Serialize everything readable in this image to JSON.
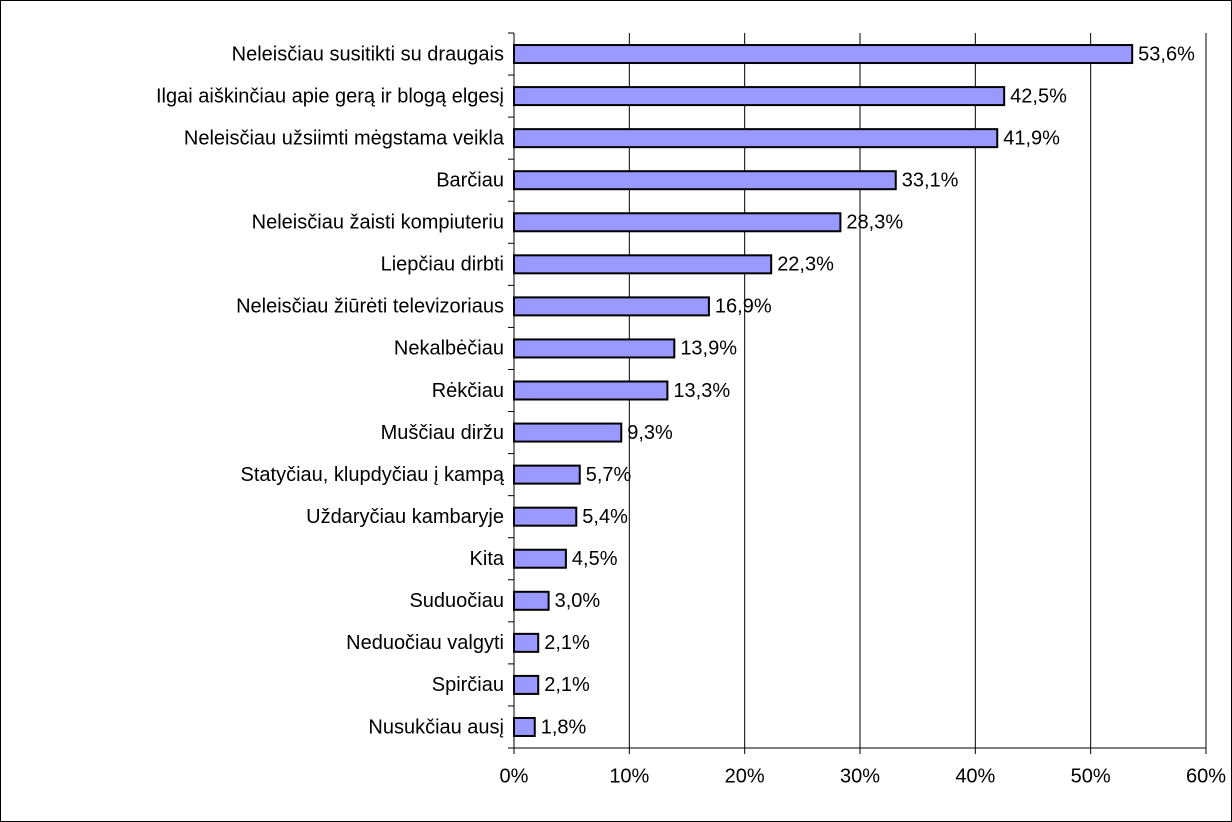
{
  "chart_data": {
    "type": "bar",
    "orientation": "horizontal",
    "categories": [
      "Neleisčiau susitikti su draugais",
      "Ilgai aiškinčiau apie gerą ir blogą elgesį",
      "Neleisčiau užsiimti mėgstama veikla",
      "Barčiau",
      "Neleisčiau žaisti kompiuteriu",
      "Liepčiau dirbti",
      "Neleisčiau žiūrėti televizoriaus",
      "Nekalbėčiau",
      "Rėkčiau",
      "Muščiau diržu",
      "Statyčiau, klupdyčiau į kampą",
      "Uždaryčiau kambaryje",
      "Kita",
      "Suduočiau",
      "Neduočiau valgyti",
      "Spirčiau",
      "Nusukčiau ausį"
    ],
    "values": [
      53.6,
      42.5,
      41.9,
      33.1,
      28.3,
      22.3,
      16.9,
      13.9,
      13.3,
      9.3,
      5.7,
      5.4,
      4.5,
      3.0,
      2.1,
      2.1,
      1.8
    ],
    "value_labels": [
      "53,6%",
      "42,5%",
      "41,9%",
      "33,1%",
      "28,3%",
      "22,3%",
      "16,9%",
      "13,9%",
      "13,3%",
      "9,3%",
      "5,7%",
      "5,4%",
      "4,5%",
      "3,0%",
      "2,1%",
      "2,1%",
      "1,8%"
    ],
    "color": "#9999ff",
    "xlim": [
      0,
      60
    ],
    "xticks": [
      {
        "value": 0,
        "label": "0%"
      },
      {
        "value": 10,
        "label": "10%"
      },
      {
        "value": 20,
        "label": "20%"
      },
      {
        "value": 30,
        "label": "30%"
      },
      {
        "value": 40,
        "label": "40%"
      },
      {
        "value": 50,
        "label": "50%"
      },
      {
        "value": 60,
        "label": "60%"
      }
    ],
    "grid": true
  }
}
